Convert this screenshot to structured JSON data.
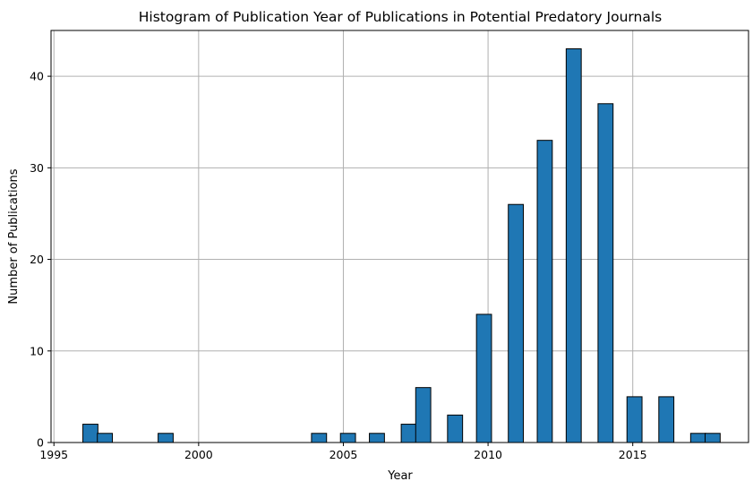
{
  "chart_data": {
    "type": "bar",
    "title": "Histogram of Publication Year of Publications in Potential Predatory Journals",
    "xlabel": "Year",
    "ylabel": "Number of Publications",
    "xlim": [
      1994.9,
      2019.0
    ],
    "ylim": [
      0,
      45
    ],
    "grid": true,
    "bar_color": "#1f77b4",
    "edge_color": "#000000",
    "bin_width": 0.52,
    "xticks": [
      {
        "value": 1995,
        "label": "1995"
      },
      {
        "value": 2000,
        "label": "2000"
      },
      {
        "value": 2005,
        "label": "2005"
      },
      {
        "value": 2010,
        "label": "2010"
      },
      {
        "value": 2015,
        "label": "2015"
      }
    ],
    "yticks": [
      {
        "value": 0,
        "label": "0"
      },
      {
        "value": 10,
        "label": "10"
      },
      {
        "value": 20,
        "label": "20"
      },
      {
        "value": 30,
        "label": "30"
      },
      {
        "value": 40,
        "label": "40"
      }
    ],
    "bins": [
      {
        "x": 1996.0,
        "value": 2
      },
      {
        "x": 1996.5,
        "value": 1
      },
      {
        "x": 1998.6,
        "value": 1
      },
      {
        "x": 2003.9,
        "value": 1
      },
      {
        "x": 2004.9,
        "value": 1
      },
      {
        "x": 2005.9,
        "value": 1
      },
      {
        "x": 2007.0,
        "value": 2
      },
      {
        "x": 2007.5,
        "value": 6
      },
      {
        "x": 2008.6,
        "value": 3
      },
      {
        "x": 2009.6,
        "value": 14
      },
      {
        "x": 2010.7,
        "value": 26
      },
      {
        "x": 2011.7,
        "value": 33
      },
      {
        "x": 2012.7,
        "value": 43
      },
      {
        "x": 2013.8,
        "value": 37
      },
      {
        "x": 2014.8,
        "value": 5
      },
      {
        "x": 2015.9,
        "value": 5
      },
      {
        "x": 2017.0,
        "value": 1
      },
      {
        "x": 2017.5,
        "value": 1
      }
    ]
  }
}
